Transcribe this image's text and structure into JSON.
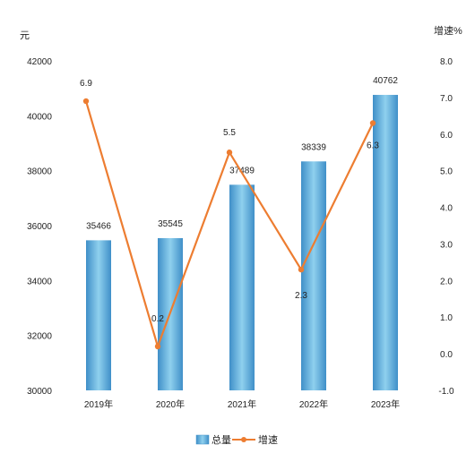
{
  "chart_data": {
    "type": "bar",
    "categories": [
      "2019年",
      "2020年",
      "2021年",
      "2022年",
      "2023年"
    ],
    "series": [
      {
        "name": "总量",
        "type": "bar",
        "axis": "left",
        "values": [
          35466,
          35545,
          37489,
          38339,
          40762
        ],
        "color": "#5aa7d6"
      },
      {
        "name": "增速",
        "type": "line",
        "axis": "right",
        "values": [
          6.9,
          0.2,
          5.5,
          2.3,
          6.3
        ],
        "color": "#ed7d31"
      }
    ],
    "ylabel_left": "元",
    "ylabel_right": "增速%",
    "ylim_left": [
      30000,
      42000
    ],
    "ylim_right": [
      -1.0,
      8.0
    ],
    "yticks_left": [
      "30000",
      "32000",
      "34000",
      "36000",
      "38000",
      "40000",
      "42000"
    ],
    "yticks_right": [
      "-1.0",
      "0.0",
      "1.0",
      "2.0",
      "3.0",
      "4.0",
      "5.0",
      "6.0",
      "7.0",
      "8.0"
    ],
    "bar_labels": [
      "35466",
      "35545",
      "37489",
      "38339",
      "40762"
    ],
    "line_labels": [
      "6.9",
      "0.2",
      "5.5",
      "2.3",
      "6.3"
    ],
    "legend": [
      "总量",
      "增速"
    ],
    "legend_position": "bottom",
    "grid": false
  }
}
